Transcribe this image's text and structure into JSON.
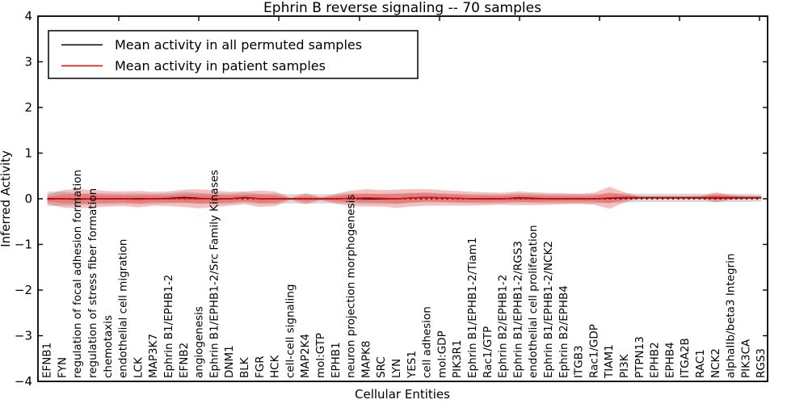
{
  "chart_data": {
    "type": "line",
    "title": "Ephrin B reverse signaling -- 70 samples",
    "xlabel": "Cellular Entities",
    "ylabel": "Inferred Activity",
    "ylim": [
      -4,
      4
    ],
    "yticks": [
      4,
      3,
      2,
      1,
      0,
      -1,
      -2,
      -3,
      -4
    ],
    "grid": false,
    "legend": {
      "position": "upper left",
      "entries": [
        "Mean activity in all permuted samples",
        "Mean activity in patient samples"
      ]
    },
    "colors": {
      "permuted_line": "#000000",
      "patient_line": "#ff0000",
      "permuted_band": "#9a9a9a",
      "patient_band": "#e03030",
      "zero_line": "#000000"
    },
    "categories": [
      "EFNB1",
      "FYN",
      "regulation of focal adhesion formation",
      "regulation of stress fiber formation",
      "chemotaxis",
      "endothelial cell migration",
      "LCK",
      "MAP3K7",
      "Ephrin B1/EPHB1-2",
      "EFNB2",
      "angiogenesis",
      "Ephrin B1/EPHB1-2/Src Family Kinases",
      "DNM1",
      "BLK",
      "FGR",
      "HCK",
      "cell-cell signaling",
      "MAP2K4",
      "mol:GTP",
      "EPHB1",
      "neuron projection morphogenesis",
      "MAPK8",
      "SRC",
      "LYN",
      "YES1",
      "cell adhesion",
      "mol:GDP",
      "PIK3R1",
      "Ephrin B1/EPHB1-2/Tiam1",
      "Rac1/GTP",
      "Ephrin B2/EPHB1-2",
      "Ephrin B1/EPHB1-2/RGS3",
      "endothelial cell proliferation",
      "Ephrin B1/EPHB1-2/NCK2",
      "Ephrin B2/EPHB4",
      "ITGB3",
      "Rac1/GDP",
      "TIAM1",
      "PI3K",
      "PTPN13",
      "EPHB2",
      "EPHB4",
      "ITGA2B",
      "RAC1",
      "NCK2",
      "alphaIIb/beta3 Integrin",
      "PIK3CA",
      "RGS3"
    ],
    "series": [
      {
        "name": "Mean activity in all permuted samples",
        "color": "#000000",
        "style": "solid",
        "values": [
          0.0,
          0.0,
          -0.01,
          0.0,
          0.0,
          0.0,
          0.0,
          0.0,
          0.01,
          0.03,
          0.01,
          0.0,
          0.0,
          0.03,
          0.0,
          0.0,
          0.0,
          0.0,
          0.0,
          0.0,
          0.01,
          0.0,
          0.0,
          0.0,
          0.02,
          0.03,
          0.02,
          0.01,
          0.0,
          0.0,
          0.0,
          0.02,
          0.01,
          0.0,
          0.0,
          0.0,
          0.0,
          0.01,
          0.02,
          0.02,
          0.02,
          0.02,
          0.02,
          0.02,
          0.02,
          0.02,
          0.02,
          0.02
        ]
      },
      {
        "name": "Mean activity in patient samples",
        "color": "#ff0000",
        "style": "solid",
        "values": [
          -0.01,
          0.0,
          0.0,
          0.0,
          0.0,
          0.0,
          -0.01,
          0.0,
          0.0,
          0.01,
          0.0,
          0.0,
          0.0,
          0.02,
          0.0,
          0.0,
          0.0,
          0.0,
          0.0,
          0.0,
          0.01,
          0.02,
          0.01,
          0.0,
          0.02,
          0.03,
          0.02,
          0.01,
          0.0,
          0.0,
          0.0,
          0.01,
          0.0,
          0.0,
          0.0,
          0.0,
          0.0,
          0.02,
          0.03,
          0.03,
          0.03,
          0.03,
          0.03,
          0.03,
          0.03,
          0.03,
          0.03,
          0.03
        ]
      }
    ],
    "bands": [
      {
        "name": "permuted-spread",
        "color": "#9a9a9a",
        "opacity": 0.4,
        "center_series": 0,
        "half_width": [
          0.16,
          0.15,
          0.13,
          0.12,
          0.12,
          0.11,
          0.12,
          0.11,
          0.11,
          0.12,
          0.12,
          0.11,
          0.11,
          0.11,
          0.11,
          0.11,
          0.1,
          0.11,
          0.1,
          0.1,
          0.11,
          0.11,
          0.11,
          0.12,
          0.11,
          0.11,
          0.1,
          0.1,
          0.1,
          0.1,
          0.1,
          0.1,
          0.1,
          0.1,
          0.1,
          0.1,
          0.1,
          0.1,
          0.1,
          0.09,
          0.09,
          0.09,
          0.09,
          0.09,
          0.09,
          0.09,
          0.09,
          0.08
        ]
      },
      {
        "name": "patient-spread",
        "color": "#e03030",
        "opacity": 0.3,
        "center_series": 1,
        "half_width": [
          0.1,
          0.19,
          0.21,
          0.19,
          0.17,
          0.16,
          0.18,
          0.15,
          0.16,
          0.19,
          0.21,
          0.18,
          0.15,
          0.14,
          0.18,
          0.16,
          0.02,
          0.12,
          0.03,
          0.11,
          0.17,
          0.19,
          0.18,
          0.2,
          0.19,
          0.18,
          0.17,
          0.16,
          0.15,
          0.14,
          0.13,
          0.15,
          0.14,
          0.13,
          0.12,
          0.11,
          0.13,
          0.24,
          0.11,
          0.02,
          0.02,
          0.02,
          0.02,
          0.03,
          0.11,
          0.05,
          0.03,
          0.02
        ]
      }
    ],
    "zero_line": {
      "y": 0,
      "style": "dotted",
      "color": "#000000"
    }
  }
}
